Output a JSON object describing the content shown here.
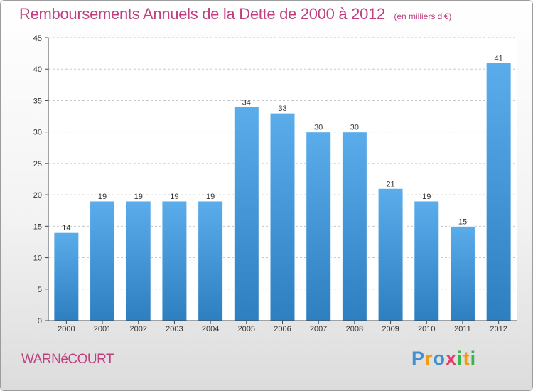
{
  "title": "Remboursements Annuels de la Dette de 2000 à 2012",
  "subtitle": "(en milliers d'€)",
  "commune": "WARNéCOURT",
  "logo": {
    "letters": [
      "P",
      "r",
      "o",
      "x",
      "i",
      "t",
      "i"
    ],
    "colors": [
      "#3f8fd2",
      "#f39c12",
      "#3f8fd2",
      "#e83a6b",
      "#39b54a",
      "#f39c12",
      "#39b54a"
    ]
  },
  "colors": {
    "bar_top": "#5aaceb",
    "bar_bottom": "#2e7fc0",
    "title": "#c0407f"
  },
  "chart_data": {
    "type": "bar",
    "categories": [
      "2000",
      "2001",
      "2002",
      "2003",
      "2004",
      "2005",
      "2006",
      "2007",
      "2008",
      "2009",
      "2010",
      "2011",
      "2012"
    ],
    "values": [
      14,
      19,
      19,
      19,
      19,
      34,
      33,
      30,
      30,
      21,
      19,
      15,
      41
    ],
    "yticks": [
      0,
      5,
      10,
      15,
      20,
      25,
      30,
      35,
      40,
      45
    ],
    "ylim": [
      0,
      45
    ],
    "grid": "horizontal dashed",
    "legend": "none"
  }
}
